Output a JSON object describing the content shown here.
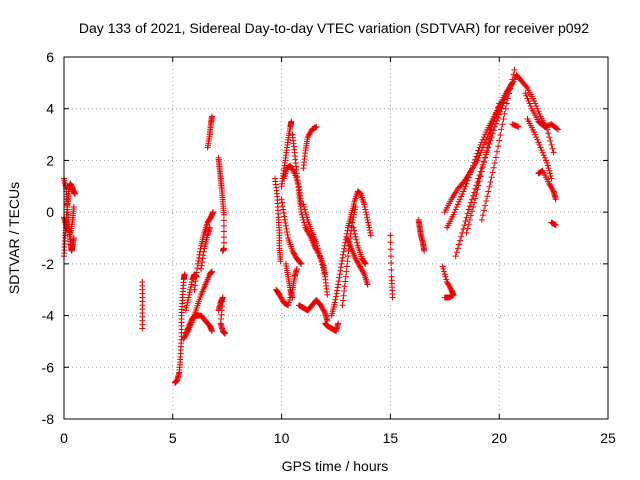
{
  "chart_data": {
    "type": "scatter",
    "title": "Day 133 of 2021, Sidereal Day-to-day VTEC variation (SDTVAR) for receiver p092",
    "xlabel": "GPS time / hours",
    "ylabel": "SDTVAR / TECUs",
    "xlim": [
      0,
      25
    ],
    "ylim": [
      -8,
      6
    ],
    "xticks": [
      0,
      5,
      10,
      15,
      20,
      25
    ],
    "yticks": [
      -8,
      -6,
      -4,
      -2,
      0,
      2,
      4,
      6
    ],
    "grid": true,
    "marker": "+",
    "color": "#ee0000",
    "series": [
      {
        "name": "p092",
        "traces": [
          [
            [
              0.0,
              1.3
            ],
            [
              0.1,
              0.9
            ],
            [
              0.15,
              0.3
            ],
            [
              0.2,
              -0.3
            ],
            [
              0.25,
              -0.8
            ],
            [
              0.3,
              -1.2
            ],
            [
              0.35,
              -1.5
            ],
            [
              0.4,
              -1.3
            ],
            [
              0.45,
              -1.0
            ]
          ],
          [
            [
              0.0,
              -1.7
            ],
            [
              0.05,
              -1.0
            ],
            [
              0.1,
              -0.4
            ],
            [
              0.15,
              0.2
            ],
            [
              0.2,
              0.6
            ],
            [
              0.25,
              1.0
            ],
            [
              0.3,
              1.1
            ],
            [
              0.4,
              0.9
            ],
            [
              0.5,
              0.7
            ]
          ],
          [
            [
              0.0,
              -0.2
            ],
            [
              0.1,
              -0.5
            ],
            [
              0.2,
              -0.7
            ],
            [
              0.3,
              -0.8
            ],
            [
              0.4,
              -0.3
            ],
            [
              0.45,
              0.2
            ]
          ],
          [
            [
              3.6,
              -2.7
            ],
            [
              3.6,
              -3.6
            ],
            [
              3.6,
              -4.5
            ]
          ],
          [
            [
              5.1,
              -6.6
            ],
            [
              5.2,
              -6.5
            ],
            [
              5.3,
              -6.2
            ],
            [
              5.35,
              -5.6
            ],
            [
              5.4,
              -4.8
            ],
            [
              5.4,
              -4.0
            ],
            [
              5.45,
              -3.3
            ],
            [
              5.5,
              -2.6
            ],
            [
              5.55,
              -2.4
            ]
          ],
          [
            [
              5.5,
              -4.9
            ],
            [
              5.7,
              -4.6
            ],
            [
              5.9,
              -4.2
            ],
            [
              6.1,
              -3.7
            ],
            [
              6.3,
              -3.2
            ],
            [
              6.5,
              -2.8
            ],
            [
              6.7,
              -2.4
            ],
            [
              6.8,
              -2.3
            ]
          ],
          [
            [
              5.6,
              -3.8
            ],
            [
              5.75,
              -3.2
            ],
            [
              5.9,
              -2.6
            ],
            [
              6.0,
              -2.4
            ],
            [
              6.1,
              -2.5
            ]
          ],
          [
            [
              5.6,
              -4.7
            ],
            [
              5.75,
              -4.4
            ],
            [
              5.9,
              -4.1
            ],
            [
              6.1,
              -4.0
            ],
            [
              6.3,
              -4.0
            ],
            [
              6.5,
              -4.2
            ],
            [
              6.7,
              -4.4
            ],
            [
              6.8,
              -4.6
            ]
          ],
          [
            [
              6.0,
              -3.0
            ],
            [
              6.15,
              -2.0
            ],
            [
              6.3,
              -1.3
            ],
            [
              6.45,
              -0.8
            ],
            [
              6.6,
              -0.4
            ],
            [
              6.75,
              -0.2
            ],
            [
              6.85,
              0.0
            ]
          ],
          [
            [
              6.3,
              -2.2
            ],
            [
              6.45,
              -1.4
            ],
            [
              6.6,
              -0.9
            ],
            [
              6.7,
              -0.6
            ]
          ],
          [
            [
              6.6,
              2.5
            ],
            [
              6.7,
              3.0
            ],
            [
              6.75,
              3.4
            ],
            [
              6.8,
              3.7
            ]
          ],
          [
            [
              7.1,
              2.1
            ],
            [
              7.15,
              1.7
            ],
            [
              7.2,
              1.3
            ],
            [
              7.25,
              0.9
            ],
            [
              7.3,
              0.4
            ],
            [
              7.35,
              -0.1
            ],
            [
              7.35,
              -1.4
            ],
            [
              7.3,
              -1.5
            ]
          ],
          [
            [
              7.1,
              -3.8
            ],
            [
              7.2,
              -3.5
            ],
            [
              7.3,
              -3.3
            ],
            [
              7.2,
              -4.3
            ],
            [
              7.3,
              -4.6
            ],
            [
              7.4,
              -4.7
            ]
          ],
          [
            [
              9.7,
              1.3
            ],
            [
              9.8,
              0.6
            ],
            [
              9.85,
              -0.2
            ],
            [
              9.9,
              -0.8
            ],
            [
              9.9,
              -1.4
            ],
            [
              9.95,
              -1.9
            ]
          ],
          [
            [
              9.75,
              -3.0
            ],
            [
              9.9,
              -3.2
            ],
            [
              10.1,
              -3.5
            ],
            [
              10.3,
              -3.6
            ],
            [
              10.5,
              -3.0
            ],
            [
              10.6,
              -2.5
            ],
            [
              10.7,
              -2.2
            ]
          ],
          [
            [
              10.0,
              1.0
            ],
            [
              10.1,
              1.6
            ],
            [
              10.2,
              2.2
            ],
            [
              10.3,
              2.8
            ],
            [
              10.4,
              3.3
            ],
            [
              10.45,
              3.5
            ]
          ],
          [
            [
              10.0,
              0.5
            ],
            [
              10.15,
              -0.3
            ],
            [
              10.3,
              -1.0
            ],
            [
              10.5,
              -1.5
            ],
            [
              10.7,
              -1.8
            ],
            [
              10.9,
              -2.0
            ]
          ],
          [
            [
              10.1,
              1.3
            ],
            [
              10.25,
              1.7
            ],
            [
              10.4,
              1.8
            ],
            [
              10.6,
              1.5
            ],
            [
              10.8,
              1.0
            ],
            [
              10.9,
              0.3
            ]
          ],
          [
            [
              10.2,
              -2.0
            ],
            [
              10.3,
              -2.5
            ],
            [
              10.4,
              -3.0
            ],
            [
              10.5,
              -3.3
            ]
          ],
          [
            [
              10.5,
              3.0
            ],
            [
              10.6,
              2.3
            ],
            [
              10.7,
              1.5
            ],
            [
              10.8,
              0.7
            ],
            [
              10.9,
              0.0
            ],
            [
              11.1,
              -0.6
            ],
            [
              11.3,
              -0.9
            ],
            [
              11.5,
              -1.3
            ],
            [
              11.7,
              -1.6
            ],
            [
              11.9,
              -2.0
            ],
            [
              12.0,
              -2.4
            ]
          ],
          [
            [
              10.8,
              -3.6
            ],
            [
              11.0,
              -3.7
            ],
            [
              11.2,
              -3.8
            ],
            [
              11.4,
              -3.6
            ],
            [
              11.6,
              -3.4
            ],
            [
              11.8,
              -3.6
            ],
            [
              12.0,
              -3.9
            ],
            [
              12.1,
              -4.2
            ]
          ],
          [
            [
              11.0,
              1.7
            ],
            [
              11.1,
              2.4
            ],
            [
              11.2,
              2.9
            ],
            [
              11.4,
              3.2
            ],
            [
              11.6,
              3.3
            ]
          ],
          [
            [
              11.0,
              0.3
            ],
            [
              11.2,
              -0.3
            ],
            [
              11.4,
              -0.8
            ],
            [
              11.6,
              -1.2
            ],
            [
              11.8,
              -1.8
            ],
            [
              12.0,
              -2.5
            ],
            [
              12.1,
              -3.2
            ]
          ],
          [
            [
              12.0,
              -4.3
            ],
            [
              12.1,
              -4.4
            ],
            [
              12.3,
              -4.5
            ],
            [
              12.5,
              -4.6
            ],
            [
              12.6,
              -4.3
            ]
          ],
          [
            [
              12.3,
              -4.0
            ],
            [
              12.45,
              -3.5
            ],
            [
              12.6,
              -2.8
            ],
            [
              12.75,
              -2.0
            ],
            [
              12.9,
              -1.3
            ],
            [
              13.05,
              -0.6
            ],
            [
              13.2,
              -0.1
            ],
            [
              13.35,
              0.4
            ],
            [
              13.5,
              0.8
            ],
            [
              13.65,
              0.7
            ],
            [
              13.8,
              0.3
            ],
            [
              13.95,
              -0.3
            ],
            [
              14.1,
              -0.9
            ]
          ],
          [
            [
              12.8,
              -3.6
            ],
            [
              12.95,
              -2.5
            ],
            [
              13.1,
              -1.3
            ],
            [
              13.25,
              -0.4
            ],
            [
              13.4,
              0.2
            ]
          ],
          [
            [
              13.0,
              -1.0
            ],
            [
              13.2,
              -1.4
            ],
            [
              13.4,
              -1.8
            ],
            [
              13.6,
              -2.1
            ],
            [
              13.8,
              -2.4
            ],
            [
              13.95,
              -2.8
            ]
          ],
          [
            [
              13.3,
              -0.6
            ],
            [
              13.5,
              -1.3
            ],
            [
              13.7,
              -1.8
            ],
            [
              13.85,
              -2.0
            ]
          ],
          [
            [
              15.0,
              -0.9
            ],
            [
              15.05,
              -2.5
            ],
            [
              15.1,
              -3.3
            ]
          ],
          [
            [
              16.3,
              -0.3
            ],
            [
              16.35,
              -0.6
            ],
            [
              16.4,
              -0.9
            ],
            [
              16.5,
              -1.2
            ],
            [
              16.55,
              -1.5
            ]
          ],
          [
            [
              17.4,
              -2.1
            ],
            [
              17.6,
              -2.7
            ],
            [
              17.8,
              -3.0
            ],
            [
              17.9,
              -3.2
            ],
            [
              17.7,
              -3.3
            ],
            [
              17.5,
              -3.3
            ]
          ],
          [
            [
              17.5,
              0.0
            ],
            [
              17.8,
              0.5
            ],
            [
              18.1,
              0.9
            ],
            [
              18.4,
              1.2
            ],
            [
              18.7,
              1.6
            ],
            [
              19.0,
              2.0
            ],
            [
              19.3,
              2.6
            ],
            [
              19.6,
              3.2
            ],
            [
              19.9,
              3.8
            ],
            [
              20.2,
              4.3
            ],
            [
              20.5,
              4.8
            ],
            [
              20.8,
              5.3
            ],
            [
              21.0,
              5.1
            ],
            [
              21.3,
              4.8
            ],
            [
              21.6,
              4.3
            ],
            [
              21.9,
              3.7
            ],
            [
              22.2,
              3.2
            ],
            [
              22.5,
              2.3
            ]
          ],
          [
            [
              17.6,
              -0.6
            ],
            [
              17.9,
              -0.1
            ],
            [
              18.2,
              0.5
            ],
            [
              18.5,
              1.1
            ],
            [
              18.8,
              1.8
            ],
            [
              19.1,
              2.5
            ],
            [
              19.4,
              3.1
            ],
            [
              19.7,
              3.6
            ],
            [
              20.0,
              4.1
            ],
            [
              20.3,
              4.6
            ],
            [
              20.6,
              5.0
            ]
          ],
          [
            [
              18.0,
              -1.7
            ],
            [
              18.3,
              -0.8
            ],
            [
              18.6,
              0.1
            ],
            [
              18.9,
              0.9
            ],
            [
              19.2,
              1.7
            ],
            [
              19.5,
              2.5
            ],
            [
              19.8,
              3.3
            ],
            [
              20.1,
              4.0
            ],
            [
              20.4,
              4.7
            ]
          ],
          [
            [
              18.5,
              -0.8
            ],
            [
              18.8,
              0.2
            ],
            [
              19.1,
              1.2
            ],
            [
              19.4,
              2.3
            ],
            [
              19.7,
              3.4
            ],
            [
              20.0,
              4.2
            ]
          ],
          [
            [
              19.2,
              -0.3
            ],
            [
              19.5,
              0.8
            ],
            [
              19.8,
              1.9
            ],
            [
              20.1,
              3.2
            ],
            [
              20.4,
              4.4
            ],
            [
              20.7,
              5.5
            ]
          ],
          [
            [
              20.6,
              3.4
            ],
            [
              20.9,
              3.3
            ]
          ],
          [
            [
              21.2,
              4.6
            ],
            [
              21.5,
              4.0
            ],
            [
              21.8,
              3.5
            ],
            [
              22.1,
              3.3
            ],
            [
              22.4,
              3.4
            ],
            [
              22.7,
              3.2
            ]
          ],
          [
            [
              21.3,
              3.6
            ],
            [
              21.6,
              3.1
            ],
            [
              21.9,
              2.5
            ],
            [
              22.2,
              1.9
            ],
            [
              22.4,
              1.3
            ]
          ],
          [
            [
              21.8,
              1.5
            ],
            [
              22.0,
              1.6
            ],
            [
              22.3,
              1.1
            ],
            [
              22.5,
              0.8
            ],
            [
              22.6,
              0.5
            ]
          ],
          [
            [
              22.4,
              -0.4
            ],
            [
              22.6,
              -0.5
            ]
          ]
        ]
      }
    ]
  }
}
